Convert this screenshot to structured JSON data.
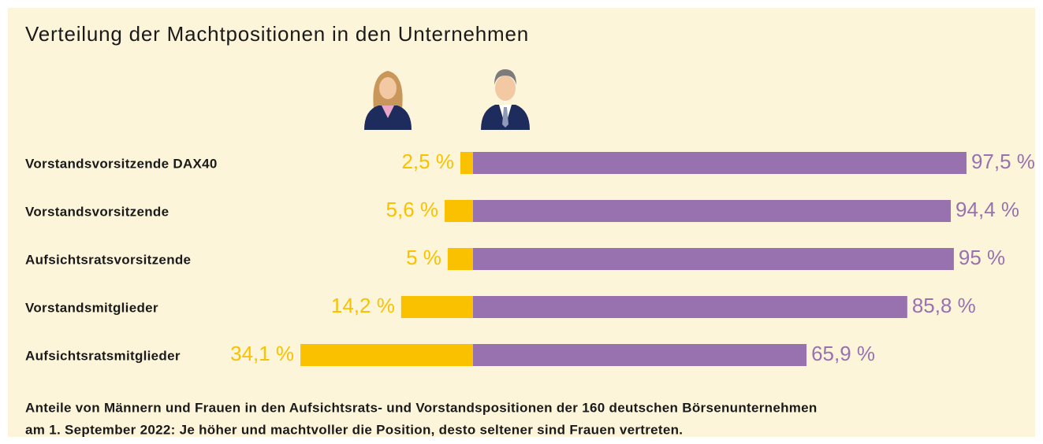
{
  "chart_data": {
    "type": "diverging-bar",
    "title": "Verteilung der Machtpositionen in den Unternehmen",
    "categories": [
      "Vorstandsvorsitzende DAX40",
      "Vorstandsvorsitzende",
      "Aufsichtsratsvorsitzende",
      "Vorstandsmitglieder",
      "Aufsichtsratsmitglieder"
    ],
    "series": [
      {
        "color": "#f9c100",
        "values": [
          2.5,
          5.6,
          5,
          14.2,
          34.1
        ],
        "value_labels": [
          "2,5 %",
          "5,6 %",
          "5 %",
          "14,2 %",
          "34,1 %"
        ]
      },
      {
        "color": "#9872af",
        "values": [
          97.5,
          94.4,
          95,
          85.8,
          65.9
        ],
        "value_labels": [
          "97,5 %",
          "94,4 %",
          "95 %",
          "85,8 %",
          "65,9 %"
        ]
      }
    ],
    "footnote": [
      "Anteile von Männern und Frauen in den Aufsichtsrats- und Vorstandspositionen der 160 deutschen Börsenunternehmen",
      "am 1. September 2022: Je höher und machtvoller die Position, desto seltener sind Frauen vertreten."
    ]
  }
}
